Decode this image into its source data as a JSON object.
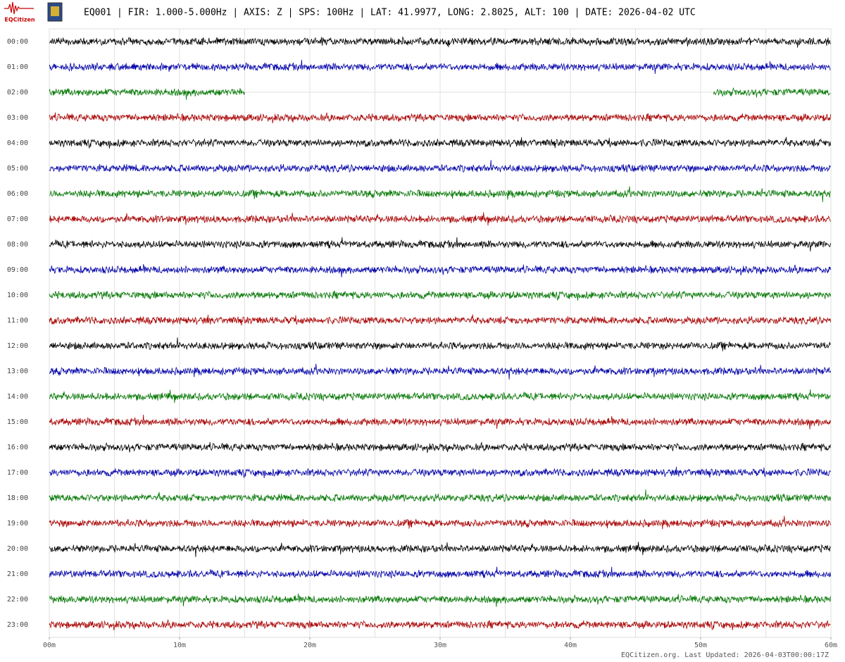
{
  "logo_text": "EQCitizen",
  "chart_data": {
    "type": "helicorder",
    "title": "EQ001 | FIR: 1.000-5.000Hz | AXIS: Z | SPS: 100Hz | LAT: 41.9977, LONG: 2.8025, ALT: 100 | DATE: 2026-04-02 UTC",
    "categories": [
      "00:00",
      "01:00",
      "02:00",
      "03:00",
      "04:00",
      "05:00",
      "06:00",
      "07:00",
      "08:00",
      "09:00",
      "10:00",
      "11:00",
      "12:00",
      "13:00",
      "14:00",
      "15:00",
      "16:00",
      "17:00",
      "18:00",
      "19:00",
      "20:00",
      "21:00",
      "22:00",
      "23:00"
    ],
    "color_cycle": [
      "#000000",
      "#0000aa",
      "#007700",
      "#aa0000"
    ],
    "xlim": [
      0,
      60
    ],
    "xticks": [
      {
        "value": 0,
        "label": "00m"
      },
      {
        "value": 10,
        "label": "10m"
      },
      {
        "value": 20,
        "label": "20m"
      },
      {
        "value": 30,
        "label": "30m"
      },
      {
        "value": 40,
        "label": "40m"
      },
      {
        "value": 50,
        "label": "50m"
      },
      {
        "value": 60,
        "label": "60m"
      }
    ],
    "grid_step": 5,
    "grid": true,
    "gaps": [
      {
        "row": 2,
        "from": 15,
        "to": 51
      }
    ],
    "footer": "EQCitizen.org. Last Updated: 2026-04-03T00:00:17Z"
  }
}
